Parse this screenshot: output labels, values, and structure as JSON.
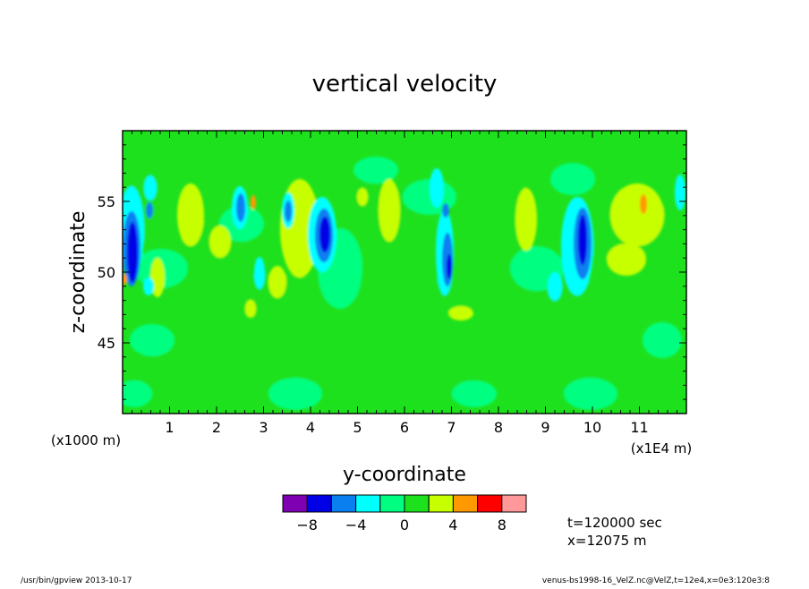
{
  "chart_data": {
    "type": "heatmap",
    "title": "vertical velocity",
    "xlabel": "y-coordinate",
    "ylabel": "z-coordinate",
    "x_unit_left": "(x1000 m)",
    "x_unit_right": "(x1E4 m)",
    "xlim": [
      0,
      12
    ],
    "ylim": [
      40,
      60
    ],
    "x_ticks": [
      1,
      2,
      3,
      4,
      5,
      6,
      7,
      8,
      9,
      10,
      11
    ],
    "y_ticks": [
      45,
      50,
      55
    ],
    "colorbar": {
      "levels": [
        -10,
        -8,
        -6,
        -4,
        -2,
        0,
        2,
        4,
        6,
        8,
        10
      ],
      "tick_labels": [
        "-8",
        "-4",
        "0",
        "4",
        "8"
      ],
      "tick_values": [
        -8,
        -4,
        0,
        4,
        8
      ],
      "colors": [
        "#7f00b2",
        "#0000e6",
        "#0a7ff0",
        "#00ffff",
        "#00ff80",
        "#1ee11e",
        "#c8ff00",
        "#ff9900",
        "#ff0000",
        "#ff9999"
      ]
    },
    "features": [
      {
        "y": 0.25,
        "z": 52.0,
        "value": -8
      },
      {
        "y": 4.3,
        "z": 53.0,
        "value": -8
      },
      {
        "y": 7.0,
        "z": 50.5,
        "value": -8
      },
      {
        "y": 9.8,
        "z": 53.0,
        "value": -8
      },
      {
        "y": 2.8,
        "z": 55.0,
        "value": 6
      },
      {
        "y": 11.0,
        "z": 55.0,
        "value": 6
      },
      {
        "y": 4.0,
        "z": 52.0,
        "value": 4
      },
      {
        "y": 11.0,
        "z": 53.0,
        "value": 4
      }
    ]
  },
  "annotations": {
    "time": "t=120000 sec",
    "x_pos": "x=12075  m",
    "footer_left": "/usr/bin/gpview  2013-10-17",
    "footer_right": "venus-bs1998-16_VelZ.nc@VelZ,t=12e4,x=0e3:120e3:8"
  }
}
